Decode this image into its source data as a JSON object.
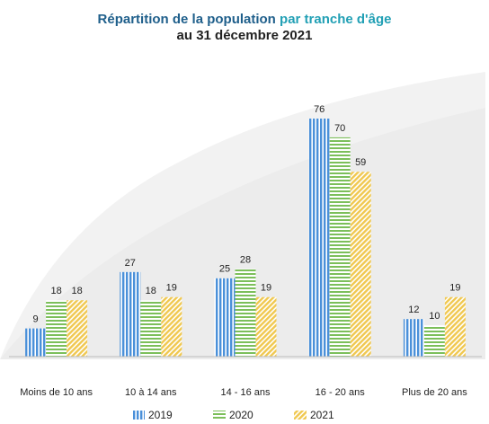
{
  "chart_data": {
    "type": "bar",
    "title": [
      "Répartition de la population",
      "par tranche d'âge",
      "au 31 décembre 2021"
    ],
    "categories": [
      "Moins de 10 ans",
      "10 à 14 ans",
      "14 - 16 ans",
      "16 - 20 ans",
      "Plus de 20 ans"
    ],
    "series": [
      {
        "name": "2019",
        "color": "#4a90d9",
        "values": [
          9,
          27,
          25,
          76,
          12
        ]
      },
      {
        "name": "2020",
        "color": "#7cbf5a",
        "values": [
          18,
          18,
          28,
          70,
          10
        ]
      },
      {
        "name": "2021",
        "color": "#f0c850",
        "values": [
          18,
          19,
          19,
          59,
          19
        ]
      }
    ],
    "ylim": [
      0,
      80
    ],
    "legend": "bottom"
  }
}
